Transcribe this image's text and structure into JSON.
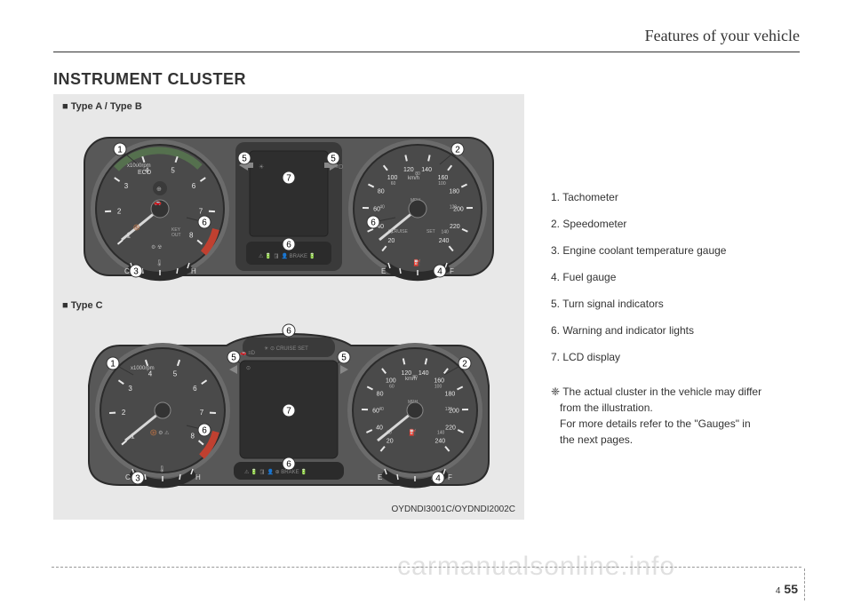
{
  "page": {
    "header": "Features of your vehicle",
    "section_title": "INSTRUMENT CLUSTER",
    "chapter": "4",
    "page_number": "55",
    "watermark": "carmanualsonline.info"
  },
  "figure_a": {
    "label": "■ Type A / Type B",
    "callouts": [
      "1",
      "2",
      "3",
      "4",
      "5",
      "5",
      "6",
      "6",
      "6",
      "7"
    ],
    "tachometer": {
      "unit": "x1000rpm",
      "eco_label": "ECO",
      "ticks": [
        "1",
        "2",
        "3",
        "4",
        "5",
        "6",
        "7",
        "8"
      ]
    },
    "speedometer": {
      "unit": "km/h",
      "sub_unit": "MPH",
      "ticks_kmh": [
        "20",
        "40",
        "60",
        "80",
        "100",
        "120",
        "140",
        "160",
        "180",
        "200",
        "220",
        "240"
      ],
      "ticks_mph": [
        "20",
        "40",
        "60",
        "80",
        "100",
        "120",
        "140"
      ]
    },
    "temp_gauge": {
      "left": "C",
      "right": "H"
    },
    "fuel_gauge": {
      "left": "E",
      "right": "F"
    },
    "center_labels": [
      "CRUISE",
      "SET",
      "KEY OUT",
      "BRAKE"
    ]
  },
  "figure_c": {
    "label": "■ Type C",
    "callouts": [
      "1",
      "2",
      "3",
      "4",
      "5",
      "5",
      "6",
      "6",
      "6",
      "7"
    ],
    "tachometer": {
      "unit": "x1000rpm",
      "ticks": [
        "1",
        "2",
        "3",
        "4",
        "5",
        "6",
        "7",
        "8"
      ]
    },
    "speedometer": {
      "unit": "km/h",
      "sub_unit": "MPH",
      "ticks_kmh": [
        "20",
        "40",
        "60",
        "80",
        "100",
        "120",
        "140",
        "160",
        "180",
        "200",
        "220",
        "240"
      ],
      "ticks_mph": [
        "20",
        "40",
        "60",
        "80",
        "100",
        "120",
        "140"
      ]
    },
    "temp_gauge": {
      "left": "C",
      "right": "H"
    },
    "fuel_gauge": {
      "left": "E",
      "right": "F"
    },
    "center_labels": [
      "CRUISE",
      "SET",
      "BRAKE"
    ]
  },
  "reference_code": "OYDNDI3001C/OYDNDI2002C",
  "legend": {
    "items": [
      "1. Tachometer",
      "2. Speedometer",
      "3. Engine coolant temperature gauge",
      "4. Fuel gauge",
      "5. Turn signal indicators",
      "6. Warning and indicator lights",
      "7. LCD display"
    ],
    "note_symbol": "❈",
    "note_lines": [
      "The actual cluster in the vehicle may differ",
      "from the illustration.",
      "For more details refer to the \"Gauges\" in",
      "the next pages."
    ]
  },
  "colors": {
    "page_bg": "#ffffff",
    "figure_bg": "#e8e8e8",
    "cluster_body": "#585858",
    "cluster_dark": "#2b2b2b",
    "gauge_face": "#4a4a4a",
    "gauge_ring_outer": "#6b6b6b",
    "gauge_ring_inner": "#3a3a3a",
    "lcd_bg": "#2e2e2e",
    "tick_color": "#e8e8e8",
    "tick_red": "#c04030",
    "needle": "#d8d8d8",
    "callout_fill": "#ffffff",
    "callout_stroke": "#333333",
    "eco_green": "#5a8050"
  }
}
